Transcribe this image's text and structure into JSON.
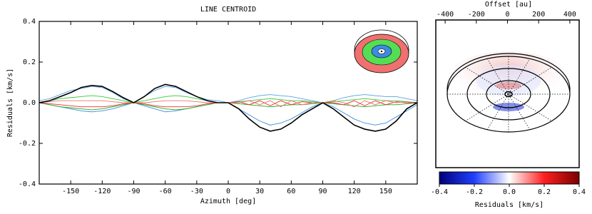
{
  "chart_data": [
    {
      "type": "line",
      "title": "LINE CENTROID",
      "xlabel": "Azimuth [deg]",
      "ylabel": "Residuals [km/s]",
      "x": [
        -180,
        -170,
        -160,
        -150,
        -140,
        -130,
        -120,
        -110,
        -100,
        -90,
        -80,
        -70,
        -60,
        -50,
        -40,
        -30,
        -20,
        -10,
        0,
        10,
        20,
        30,
        40,
        50,
        60,
        70,
        80,
        90,
        100,
        110,
        120,
        130,
        140,
        150,
        160,
        170,
        180
      ],
      "xlim": [
        -180,
        180
      ],
      "xticks": [
        -150,
        -120,
        -90,
        -60,
        -30,
        0,
        30,
        60,
        90,
        120,
        150
      ],
      "ylim": [
        -0.4,
        0.4
      ],
      "yticks": [
        -0.4,
        -0.2,
        {
          "value": 0,
          "label": "0.0"
        },
        0.2,
        0.4
      ],
      "series": [
        {
          "color": "#5aa0e6",
          "values": [
            0.01,
            0.02,
            0.04,
            0.06,
            0.07,
            0.08,
            0.075,
            0.05,
            0.02,
            0.0,
            0.03,
            0.06,
            0.08,
            0.075,
            0.05,
            0.03,
            0.015,
            0.01,
            0.0,
            0.01,
            0.025,
            0.035,
            0.04,
            0.035,
            0.03,
            0.02,
            0.01,
            0.0,
            0.01,
            0.025,
            0.035,
            0.04,
            0.035,
            0.03,
            0.03,
            0.02,
            0.01
          ]
        },
        {
          "color": "#3c8ce0",
          "values": [
            0.0,
            -0.01,
            -0.02,
            -0.03,
            -0.04,
            -0.045,
            -0.04,
            -0.03,
            -0.015,
            0.0,
            -0.015,
            -0.03,
            -0.045,
            -0.04,
            -0.03,
            -0.02,
            -0.01,
            0.0,
            0.0,
            -0.03,
            -0.06,
            -0.09,
            -0.11,
            -0.1,
            -0.08,
            -0.05,
            -0.02,
            0.0,
            -0.02,
            -0.05,
            -0.08,
            -0.1,
            -0.11,
            -0.1,
            -0.07,
            -0.04,
            -0.01
          ]
        },
        {
          "color": "#33cc33",
          "values": [
            0.0,
            0.01,
            0.02,
            0.025,
            0.03,
            0.035,
            0.03,
            0.02,
            0.01,
            0.0,
            0.01,
            0.02,
            0.03,
            0.035,
            0.03,
            0.02,
            0.01,
            0.0,
            0.0,
            0.005,
            0.01,
            0.015,
            0.02,
            0.015,
            0.01,
            0.01,
            0.005,
            0.0,
            0.005,
            0.01,
            0.015,
            0.02,
            0.015,
            0.01,
            0.01,
            0.005,
            0.0
          ]
        },
        {
          "color": "#22aa22",
          "values": [
            0.0,
            -0.01,
            -0.02,
            -0.025,
            -0.03,
            -0.035,
            -0.03,
            -0.02,
            -0.01,
            0.0,
            -0.01,
            -0.02,
            -0.03,
            -0.035,
            -0.03,
            -0.02,
            -0.01,
            0.0,
            0.0,
            -0.005,
            -0.01,
            -0.015,
            -0.02,
            -0.015,
            -0.01,
            -0.01,
            -0.005,
            0.0,
            -0.005,
            -0.01,
            -0.015,
            -0.02,
            -0.015,
            -0.01,
            -0.01,
            -0.005,
            0.0
          ]
        },
        {
          "color": "#e6332a",
          "values": [
            0.0,
            -0.005,
            -0.01,
            -0.015,
            -0.02,
            -0.02,
            -0.02,
            -0.015,
            -0.005,
            0.0,
            -0.005,
            -0.015,
            -0.02,
            -0.02,
            -0.02,
            -0.015,
            -0.005,
            0.0,
            0.0,
            0.005,
            -0.01,
            0.01,
            -0.015,
            0.01,
            -0.01,
            0.005,
            0.0,
            0.0,
            0.0,
            -0.01,
            0.01,
            -0.015,
            0.01,
            -0.01,
            0.005,
            0.0,
            0.0
          ]
        },
        {
          "color": "#f07070",
          "values": [
            0.0,
            0.005,
            0.01,
            0.01,
            0.01,
            0.01,
            0.01,
            0.005,
            0.0,
            0.0,
            0.0,
            0.005,
            0.01,
            0.01,
            0.01,
            0.005,
            0.0,
            0.0,
            0.0,
            0.0,
            0.01,
            -0.01,
            0.01,
            -0.02,
            0.01,
            -0.01,
            0.0,
            0.0,
            0.01,
            0.0,
            -0.02,
            0.01,
            -0.01,
            0.01,
            0.0,
            0.005,
            0.0
          ]
        },
        {
          "color": "#000000",
          "values": [
            0.0,
            0.01,
            0.03,
            0.05,
            0.075,
            0.085,
            0.08,
            0.055,
            0.025,
            0.0,
            0.03,
            0.07,
            0.09,
            0.08,
            0.055,
            0.03,
            0.01,
            0.0,
            0.0,
            -0.03,
            -0.08,
            -0.12,
            -0.14,
            -0.13,
            -0.1,
            -0.06,
            -0.03,
            0.0,
            -0.03,
            -0.07,
            -0.11,
            -0.13,
            -0.14,
            -0.13,
            -0.09,
            -0.03,
            0.0
          ]
        }
      ]
    },
    {
      "type": "image",
      "xlabel": "Offset [au]",
      "xlim": [
        -460,
        460
      ],
      "xticks": [
        -400,
        -200,
        0,
        200,
        400
      ],
      "colorbar": {
        "label": "Residuals [km/s]",
        "lim": [
          -0.4,
          0.4
        ],
        "ticks": [
          -0.4,
          -0.2,
          {
            "value": 0,
            "label": "0.0"
          },
          0.2,
          0.4
        ]
      }
    }
  ]
}
